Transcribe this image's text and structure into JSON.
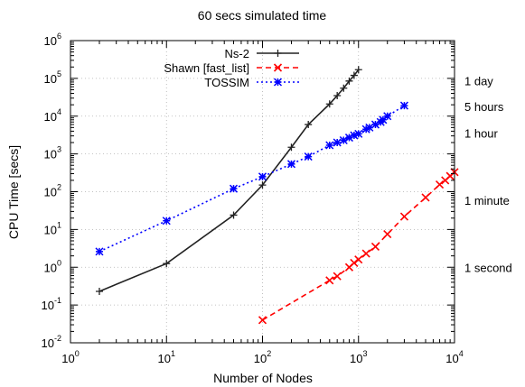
{
  "chart_data": {
    "type": "line",
    "title": "60 secs simulated time",
    "xlabel": "Number of Nodes",
    "ylabel": "CPU Time [secs]",
    "x_scale": "log",
    "y_scale": "log",
    "xlim": [
      1,
      10000
    ],
    "ylim": [
      0.01,
      1000000
    ],
    "grid": true,
    "legend_position": "top-center",
    "x_ticks": [
      {
        "base": "10",
        "exp": "0",
        "value": 1
      },
      {
        "base": "10",
        "exp": "1",
        "value": 10
      },
      {
        "base": "10",
        "exp": "2",
        "value": 100
      },
      {
        "base": "10",
        "exp": "3",
        "value": 1000
      },
      {
        "base": "10",
        "exp": "4",
        "value": 10000
      }
    ],
    "y_ticks": [
      {
        "base": "10",
        "exp": "-2",
        "value": 0.01
      },
      {
        "base": "10",
        "exp": "-1",
        "value": 0.1
      },
      {
        "base": "10",
        "exp": "0",
        "value": 1
      },
      {
        "base": "10",
        "exp": "1",
        "value": 10
      },
      {
        "base": "10",
        "exp": "2",
        "value": 100
      },
      {
        "base": "10",
        "exp": "3",
        "value": 1000
      },
      {
        "base": "10",
        "exp": "4",
        "value": 10000
      },
      {
        "base": "10",
        "exp": "5",
        "value": 100000
      },
      {
        "base": "10",
        "exp": "6",
        "value": 1000000
      }
    ],
    "right_labels": [
      {
        "text": "1 day",
        "value": 86400
      },
      {
        "text": "5 hours",
        "value": 18000
      },
      {
        "text": "1 hour",
        "value": 3600
      },
      {
        "text": "1 minute",
        "value": 60
      },
      {
        "text": "1 second",
        "value": 1
      }
    ],
    "series": [
      {
        "name": "Ns-2",
        "color": "#222222",
        "dash": "solid",
        "marker": "plus",
        "x": [
          2,
          10,
          50,
          100,
          200,
          300,
          500,
          600,
          700,
          800,
          900,
          1000
        ],
        "y": [
          0.23,
          1.25,
          24,
          150,
          1500,
          6000,
          21000,
          35000,
          55000,
          85000,
          120000,
          170000
        ]
      },
      {
        "name": "Shawn [fast_list]",
        "color": "#ff0000",
        "dash": "dashed",
        "marker": "x",
        "x": [
          100,
          500,
          600,
          800,
          900,
          1000,
          1200,
          1500,
          2000,
          3000,
          5000,
          7000,
          8000,
          9000,
          10000
        ],
        "y": [
          0.04,
          0.45,
          0.58,
          1.0,
          1.3,
          1.6,
          2.3,
          3.5,
          7.5,
          22,
          70,
          155,
          200,
          260,
          330
        ]
      },
      {
        "name": "TOSSIM",
        "color": "#0000ff",
        "dash": "dotted",
        "marker": "star",
        "x": [
          2,
          10,
          50,
          100,
          200,
          300,
          500,
          600,
          700,
          800,
          900,
          1000,
          1200,
          1300,
          1500,
          1700,
          1800,
          2000,
          3000
        ],
        "y": [
          2.6,
          17,
          120,
          250,
          540,
          850,
          1700,
          2000,
          2300,
          2700,
          3100,
          3400,
          4500,
          5000,
          6000,
          7000,
          8000,
          10000,
          19000
        ]
      }
    ]
  }
}
